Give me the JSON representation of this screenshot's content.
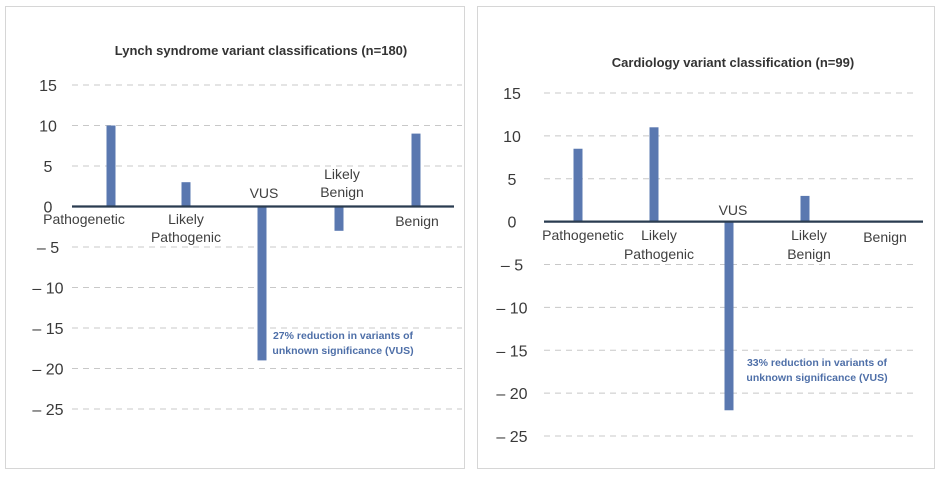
{
  "colors": {
    "bar": "#5a78b0",
    "axis": "#2a3c50",
    "grid": "#c8c8c8",
    "note": "#4e6fa8"
  },
  "chart_data": [
    {
      "type": "bar",
      "title": "Lynch syndrome variant classifications (n=180)",
      "categories": [
        "Pathogenetic",
        "Likely Pathogenic",
        "VUS",
        "Likely Benign",
        "Benign"
      ],
      "category_label_lines": [
        [
          "Pathogenetic"
        ],
        [
          "Likely",
          "Pathogenic"
        ],
        [
          "VUS"
        ],
        [
          "Likely",
          "Benign"
        ],
        [
          "Benign"
        ]
      ],
      "values": [
        10,
        3,
        -19,
        -3,
        9
      ],
      "ylim": [
        -25,
        15
      ],
      "yticks": [
        15,
        10,
        5,
        0,
        -5,
        -10,
        -15,
        -20,
        -25
      ],
      "ytick_labels": [
        "15",
        "10",
        "5",
        "0",
        "– 5",
        "– 10",
        "– 15",
        "– 20",
        "– 25"
      ],
      "annotation": [
        "27% reduction in variants of",
        "unknown significance (VUS)"
      ],
      "grid": true
    },
    {
      "type": "bar",
      "title": "Cardiology variant classification (n=99)",
      "categories": [
        "Pathogenetic",
        "Likely Pathogenic",
        "VUS",
        "Likely Benign",
        "Benign"
      ],
      "category_label_lines": [
        [
          "Pathogenetic"
        ],
        [
          "Likely",
          "Pathogenic"
        ],
        [
          "VUS"
        ],
        [
          "Likely",
          "Benign"
        ],
        [
          "Benign"
        ]
      ],
      "values": [
        8.5,
        11,
        -22,
        3,
        0
      ],
      "ylim": [
        -25,
        15
      ],
      "yticks": [
        15,
        10,
        5,
        0,
        -5,
        -10,
        -15,
        -20,
        -25
      ],
      "ytick_labels": [
        "15",
        "10",
        "5",
        "0",
        "– 5",
        "– 10",
        "– 15",
        "– 20",
        "– 25"
      ],
      "annotation": [
        "33% reduction in variants of",
        "unknown significance (VUS)"
      ],
      "grid": true
    }
  ]
}
